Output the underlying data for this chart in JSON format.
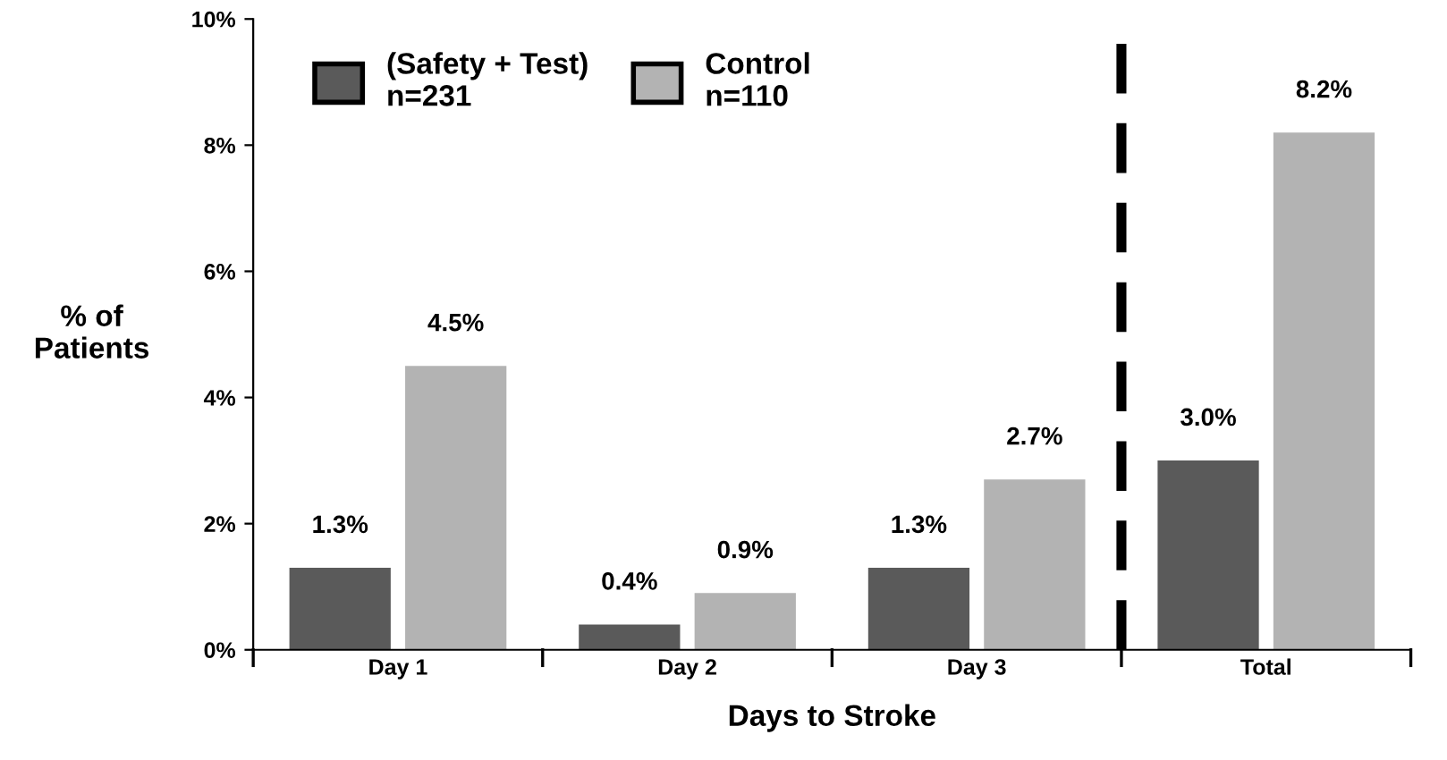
{
  "chart_data": {
    "type": "bar",
    "xlabel": "Days to Stroke",
    "ylabel": "% of\nPatients",
    "categories": [
      "Day 1",
      "Day 2",
      "Day 3",
      "Total"
    ],
    "series": [
      {
        "name": "(Safety + Test)\nn=231",
        "color": "#5a5a5a",
        "values": [
          1.3,
          0.4,
          1.3,
          3.0
        ],
        "value_labels": [
          "1.3%",
          "0.4%",
          "1.3%",
          "3.0%"
        ]
      },
      {
        "name": "Control\nn=110",
        "color": "#b3b3b3",
        "values": [
          4.5,
          0.9,
          2.7,
          8.2
        ],
        "value_labels": [
          "4.5%",
          "0.9%",
          "2.7%",
          "8.2%"
        ]
      }
    ],
    "ylim": [
      0,
      10
    ],
    "yticks": [
      {
        "value": 0,
        "label": "0%"
      },
      {
        "value": 2,
        "label": "2%"
      },
      {
        "value": 4,
        "label": "4%"
      },
      {
        "value": 6,
        "label": "6%"
      },
      {
        "value": 8,
        "label": "8%"
      },
      {
        "value": 10,
        "label": "10%"
      }
    ],
    "legend": "top left",
    "grid": false
  }
}
